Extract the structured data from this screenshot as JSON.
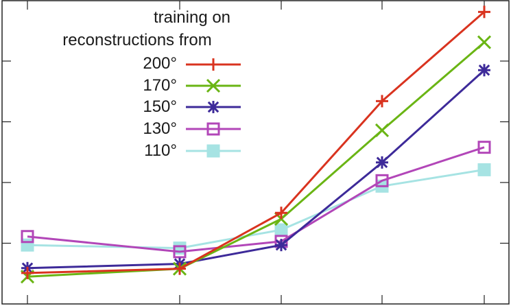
{
  "chart_data": {
    "type": "line",
    "title": "",
    "xlabel": "",
    "ylabel": "",
    "x": [
      1,
      2,
      3,
      4,
      5
    ],
    "x_tick_labels": [],
    "y_tick_labels": [],
    "ylim": [
      0,
      5
    ],
    "grid": false,
    "legend": {
      "title_lines": [
        "training on",
        "reconstructions from"
      ],
      "position": "upper-left-center"
    },
    "series": [
      {
        "name": "200°",
        "color": "#d9331f",
        "marker": "plus",
        "values": [
          0.51,
          0.58,
          1.5,
          3.34,
          4.81
        ]
      },
      {
        "name": "170°",
        "color": "#6ab514",
        "marker": "x",
        "values": [
          0.45,
          0.58,
          1.4,
          2.86,
          4.31
        ]
      },
      {
        "name": "150°",
        "color": "#3d2a99",
        "marker": "asterisk",
        "values": [
          0.59,
          0.66,
          0.97,
          2.33,
          3.85
        ]
      },
      {
        "name": "130°",
        "color": "#b246b8",
        "marker": "open-square",
        "values": [
          1.11,
          0.86,
          1.03,
          2.03,
          2.58
        ]
      },
      {
        "name": "110°",
        "color": "#a6e3e3",
        "marker": "filled-square",
        "values": [
          0.97,
          0.92,
          1.22,
          1.94,
          2.21
        ]
      }
    ]
  }
}
